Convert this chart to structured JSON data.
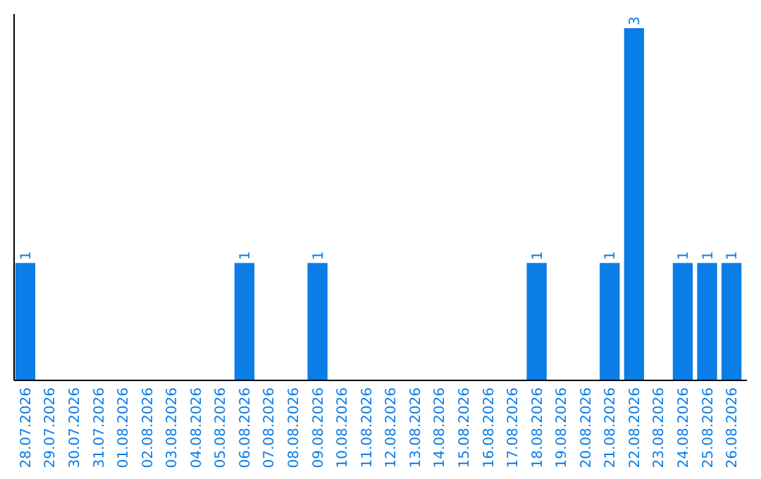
{
  "chart_data": {
    "type": "bar",
    "categories": [
      "28.07.2026",
      "29.07.2026",
      "30.07.2026",
      "31.07.2026",
      "01.08.2026",
      "02.08.2026",
      "03.08.2026",
      "04.08.2026",
      "05.08.2026",
      "06.08.2026",
      "07.08.2026",
      "08.08.2026",
      "09.08.2026",
      "10.08.2026",
      "11.08.2026",
      "12.08.2026",
      "13.08.2026",
      "14.08.2026",
      "15.08.2026",
      "16.08.2026",
      "17.08.2026",
      "18.08.2026",
      "19.08.2026",
      "20.08.2026",
      "21.08.2026",
      "22.08.2026",
      "23.08.2026",
      "24.08.2026",
      "25.08.2026",
      "26.08.2026"
    ],
    "values": [
      1,
      0,
      0,
      0,
      0,
      0,
      0,
      0,
      0,
      1,
      0,
      0,
      1,
      0,
      0,
      0,
      0,
      0,
      0,
      0,
      0,
      1,
      0,
      0,
      1,
      3,
      0,
      1,
      1,
      1
    ],
    "value_labels": [
      "1",
      null,
      null,
      null,
      null,
      null,
      null,
      null,
      null,
      "1",
      null,
      null,
      "1",
      null,
      null,
      null,
      null,
      null,
      null,
      null,
      null,
      "1",
      null,
      null,
      "1",
      "3",
      null,
      "1",
      "1",
      "1"
    ],
    "color": "#0a7de6",
    "tick_labels": "x"
  }
}
